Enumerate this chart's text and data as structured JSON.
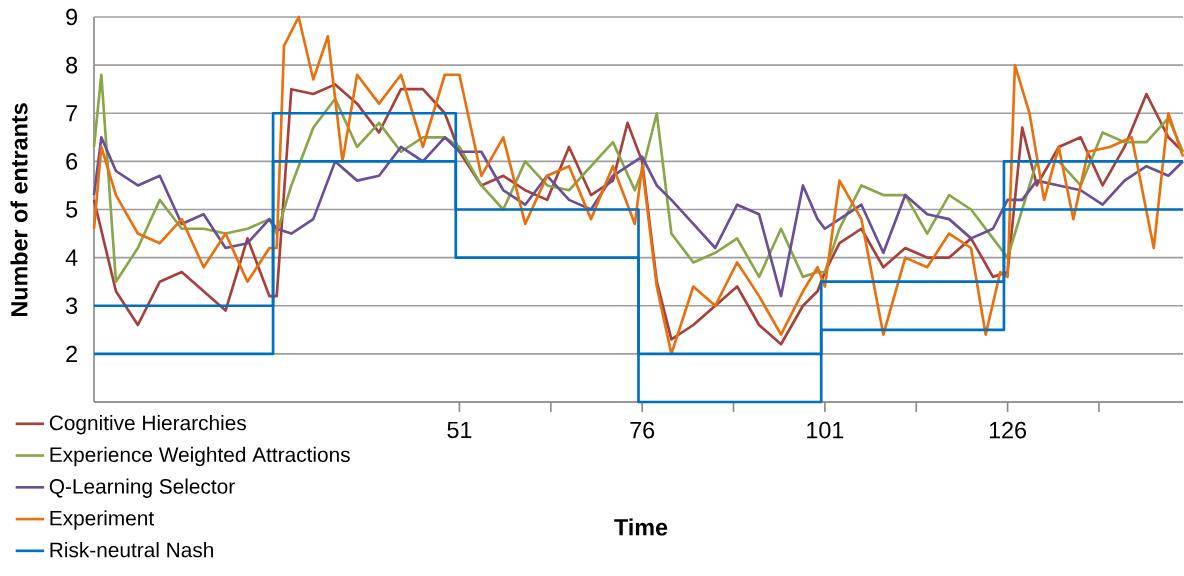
{
  "chart_data": {
    "type": "line",
    "xlabel": "Time",
    "ylabel": "Number of entrants",
    "xlim": [
      1,
      150
    ],
    "ylim": [
      1,
      9
    ],
    "xticks": [
      51,
      {
        "value": 63.5,
        "label": null
      },
      76,
      {
        "value": 88.5,
        "label": null
      },
      101,
      {
        "value": 113.5,
        "label": null
      },
      126,
      {
        "value": 138.5,
        "label": null
      }
    ],
    "yticks": [
      {
        "value": 1,
        "label": null
      },
      2,
      3,
      4,
      5,
      6,
      7,
      8,
      9
    ],
    "grid": "y",
    "legend": "bottom left",
    "series": [
      {
        "name": "Cognitive Hierarchies",
        "color": "#a5403b",
        "x": [
          1,
          4,
          7,
          10,
          13,
          16,
          19,
          22,
          25,
          26,
          28,
          31,
          34,
          37,
          40,
          43,
          46,
          49,
          51,
          54,
          57,
          60,
          63,
          66,
          69,
          72,
          74,
          76,
          78,
          80,
          83,
          86,
          89,
          92,
          95,
          98,
          100,
          101,
          103,
          106,
          109,
          112,
          115,
          118,
          121,
          124,
          126,
          128,
          130,
          133,
          136,
          139,
          142,
          145,
          148,
          150
        ],
        "values": [
          5.2,
          3.3,
          2.6,
          3.5,
          3.7,
          3.3,
          2.9,
          4.4,
          3.2,
          3.2,
          7.5,
          7.4,
          7.6,
          7.2,
          6.6,
          7.5,
          7.5,
          7.0,
          6.2,
          5.5,
          5.7,
          5.4,
          5.2,
          6.3,
          5.3,
          5.6,
          6.8,
          6.0,
          3.5,
          2.3,
          2.6,
          3.0,
          3.4,
          2.6,
          2.2,
          3.0,
          3.3,
          3.7,
          4.3,
          4.6,
          3.8,
          4.2,
          4.0,
          4.0,
          4.4,
          3.6,
          3.7,
          6.7,
          5.5,
          6.3,
          6.5,
          5.5,
          6.3,
          7.4,
          6.5,
          6.2
        ]
      },
      {
        "name": "Experience Weighted Attractions",
        "color": "#8aa64a",
        "x": [
          1,
          2,
          4,
          7,
          10,
          13,
          16,
          19,
          22,
          25,
          26,
          28,
          31,
          34,
          37,
          40,
          43,
          46,
          49,
          51,
          54,
          57,
          60,
          63,
          66,
          69,
          72,
          75,
          76,
          78,
          80,
          83,
          86,
          89,
          92,
          95,
          98,
          100,
          101,
          103,
          106,
          109,
          112,
          115,
          118,
          121,
          124,
          126,
          128,
          130,
          133,
          136,
          139,
          142,
          145,
          148,
          150
        ],
        "values": [
          6.3,
          7.8,
          3.5,
          4.2,
          5.2,
          4.6,
          4.6,
          4.5,
          4.6,
          4.8,
          4.5,
          5.5,
          6.7,
          7.3,
          6.3,
          6.8,
          6.2,
          6.5,
          6.5,
          6.3,
          5.5,
          5.0,
          6.0,
          5.5,
          5.4,
          5.9,
          6.4,
          5.4,
          5.8,
          7.0,
          4.5,
          3.9,
          4.1,
          4.4,
          3.6,
          4.6,
          3.6,
          3.7,
          3.7,
          4.6,
          5.5,
          5.3,
          5.3,
          4.5,
          5.3,
          5.0,
          4.4,
          4.0,
          5.0,
          6.0,
          6.0,
          5.5,
          6.6,
          6.4,
          6.4,
          6.9,
          6.2
        ]
      },
      {
        "name": "Q-Learning Selector",
        "color": "#6a4f94",
        "x": [
          1,
          2,
          4,
          7,
          10,
          13,
          16,
          19,
          22,
          25,
          26,
          28,
          31,
          34,
          37,
          40,
          43,
          46,
          49,
          51,
          54,
          57,
          60,
          63,
          66,
          69,
          72,
          74,
          76,
          78,
          80,
          83,
          86,
          89,
          92,
          95,
          98,
          100,
          101,
          103,
          106,
          109,
          112,
          115,
          118,
          121,
          124,
          126,
          128,
          130,
          133,
          136,
          139,
          142,
          145,
          148,
          150
        ],
        "values": [
          5.3,
          6.5,
          5.8,
          5.5,
          5.7,
          4.7,
          4.9,
          4.2,
          4.3,
          4.8,
          4.6,
          4.5,
          4.8,
          6.0,
          5.6,
          5.7,
          6.3,
          6.0,
          6.5,
          6.2,
          6.2,
          5.4,
          5.1,
          5.7,
          5.2,
          5.0,
          5.7,
          5.9,
          6.1,
          5.5,
          5.2,
          4.7,
          4.2,
          5.1,
          4.9,
          3.2,
          5.5,
          4.8,
          4.6,
          4.8,
          5.1,
          4.1,
          5.3,
          4.9,
          4.8,
          4.4,
          4.6,
          5.2,
          5.2,
          5.6,
          5.5,
          5.4,
          5.1,
          5.6,
          5.9,
          5.7,
          6.0
        ]
      },
      {
        "name": "Experiment",
        "color": "#e8700f",
        "x": [
          1,
          2,
          4,
          7,
          10,
          13,
          16,
          19,
          22,
          25,
          26,
          27,
          29,
          31,
          33,
          35,
          37,
          40,
          43,
          46,
          49,
          51,
          54,
          57,
          60,
          63,
          66,
          69,
          72,
          75,
          76,
          78,
          80,
          83,
          86,
          89,
          92,
          95,
          98,
          100,
          101,
          103,
          106,
          109,
          112,
          115,
          118,
          121,
          123,
          125,
          126,
          127,
          129,
          131,
          133,
          135,
          137,
          140,
          143,
          146,
          148,
          150
        ],
        "values": [
          4.6,
          6.3,
          5.3,
          4.5,
          4.3,
          4.8,
          3.8,
          4.5,
          3.5,
          4.2,
          4.2,
          8.4,
          9.0,
          7.7,
          8.6,
          6.0,
          7.8,
          7.2,
          7.8,
          6.3,
          7.8,
          7.8,
          5.7,
          6.5,
          4.7,
          5.7,
          5.9,
          4.8,
          5.9,
          4.7,
          5.9,
          3.4,
          2.0,
          3.4,
          3.0,
          3.9,
          3.2,
          2.4,
          3.3,
          3.8,
          3.4,
          5.6,
          4.8,
          2.4,
          4.0,
          3.8,
          4.5,
          4.2,
          2.4,
          3.7,
          3.6,
          8.0,
          7.0,
          5.2,
          6.3,
          4.8,
          6.2,
          6.3,
          6.5,
          4.2,
          7.0,
          6.1
        ]
      },
      {
        "name": "Risk-neutral Nash",
        "color": "#0070c0",
        "type": "step",
        "x": [
          1,
          25.5,
          50.5,
          75.5,
          100.5,
          125.5,
          150
        ],
        "values": [
          3,
          7,
          5,
          2,
          3.5,
          6,
          6
        ]
      },
      {
        "color": "#0070c0",
        "type": "step",
        "x": [
          1,
          25.5,
          50.5,
          75.5,
          100.5,
          125.5,
          150
        ],
        "values": [
          2,
          6,
          4,
          1,
          2.5,
          5,
          5
        ]
      }
    ]
  }
}
